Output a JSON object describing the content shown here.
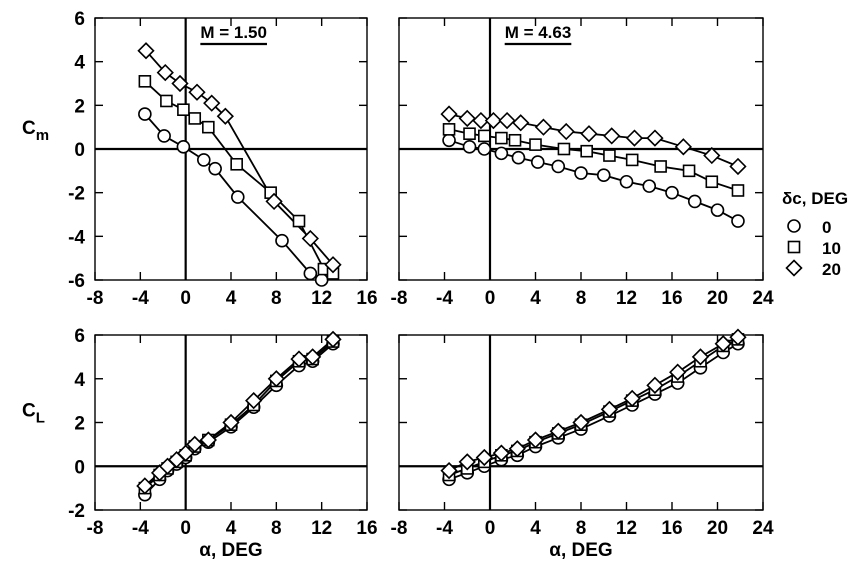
{
  "chart_data": [
    {
      "type": "line",
      "panel": "top-left",
      "title": "M = 1.50",
      "xlabel": "",
      "ylabel": "Cm",
      "xlim": [
        -8,
        16
      ],
      "ylim": [
        -6,
        6
      ],
      "x_ticks": [
        "-8",
        "-4",
        "0",
        "4",
        "8",
        "12",
        "16"
      ],
      "y_ticks": [
        "6",
        "4",
        "2",
        "0",
        "-2",
        "-4",
        "-6"
      ],
      "series": [
        {
          "name": "0",
          "marker": "circle",
          "points": [
            [
              -3.6,
              1.6
            ],
            [
              -1.9,
              0.6
            ],
            [
              -0.2,
              0.1
            ],
            [
              1.6,
              -0.5
            ],
            [
              2.6,
              -0.9
            ],
            [
              4.6,
              -2.2
            ],
            [
              8.5,
              -4.2
            ],
            [
              11.0,
              -5.7
            ],
            [
              12.0,
              -6.0
            ]
          ]
        },
        {
          "name": "10",
          "marker": "square",
          "points": [
            [
              -3.6,
              3.1
            ],
            [
              -1.7,
              2.2
            ],
            [
              -0.2,
              1.8
            ],
            [
              0.8,
              1.4
            ],
            [
              2.0,
              1.0
            ],
            [
              4.5,
              -0.7
            ],
            [
              7.5,
              -2.0
            ],
            [
              10.0,
              -3.3
            ],
            [
              12.2,
              -5.5
            ],
            [
              13.0,
              -5.7
            ]
          ]
        },
        {
          "name": "20",
          "marker": "diamond",
          "points": [
            [
              -3.5,
              4.5
            ],
            [
              -1.8,
              3.5
            ],
            [
              -0.5,
              3.0
            ],
            [
              1.0,
              2.6
            ],
            [
              2.3,
              2.1
            ],
            [
              3.5,
              1.5
            ],
            [
              7.8,
              -2.4
            ],
            [
              11.0,
              -4.1
            ],
            [
              13.0,
              -5.3
            ]
          ]
        }
      ]
    },
    {
      "type": "line",
      "panel": "top-right",
      "title": "M = 4.63",
      "xlabel": "",
      "ylabel": "",
      "xlim": [
        -8,
        24
      ],
      "ylim": [
        -6,
        6
      ],
      "x_ticks": [
        "-8",
        "-4",
        "0",
        "4",
        "8",
        "12",
        "16",
        "20",
        "24"
      ],
      "y_ticks": [],
      "series": [
        {
          "name": "0",
          "marker": "circle",
          "points": [
            [
              -3.6,
              0.4
            ],
            [
              -1.8,
              0.1
            ],
            [
              -0.5,
              0.0
            ],
            [
              1.0,
              -0.2
            ],
            [
              2.5,
              -0.4
            ],
            [
              4.2,
              -0.6
            ],
            [
              6.0,
              -0.8
            ],
            [
              8.0,
              -1.1
            ],
            [
              10.0,
              -1.2
            ],
            [
              12.0,
              -1.5
            ],
            [
              14.0,
              -1.7
            ],
            [
              16.0,
              -2.0
            ],
            [
              18.0,
              -2.4
            ],
            [
              20.0,
              -2.8
            ],
            [
              21.8,
              -3.3
            ]
          ]
        },
        {
          "name": "10",
          "marker": "square",
          "points": [
            [
              -3.6,
              0.9
            ],
            [
              -1.8,
              0.7
            ],
            [
              -0.5,
              0.6
            ],
            [
              1.0,
              0.5
            ],
            [
              2.2,
              0.4
            ],
            [
              4.0,
              0.2
            ],
            [
              6.5,
              0.0
            ],
            [
              8.5,
              -0.1
            ],
            [
              10.5,
              -0.3
            ],
            [
              12.5,
              -0.5
            ],
            [
              15.0,
              -0.8
            ],
            [
              17.5,
              -1.0
            ],
            [
              19.5,
              -1.5
            ],
            [
              21.8,
              -1.9
            ]
          ]
        },
        {
          "name": "20",
          "marker": "diamond",
          "points": [
            [
              -3.6,
              1.6
            ],
            [
              -2.0,
              1.4
            ],
            [
              -0.8,
              1.3
            ],
            [
              0.3,
              1.3
            ],
            [
              1.5,
              1.3
            ],
            [
              2.7,
              1.2
            ],
            [
              4.7,
              1.0
            ],
            [
              6.7,
              0.8
            ],
            [
              8.7,
              0.7
            ],
            [
              10.7,
              0.6
            ],
            [
              12.7,
              0.5
            ],
            [
              14.5,
              0.5
            ],
            [
              17.0,
              0.1
            ],
            [
              19.5,
              -0.3
            ],
            [
              21.8,
              -0.8
            ]
          ]
        }
      ]
    },
    {
      "type": "line",
      "panel": "bottom-left",
      "title": "",
      "xlabel": "α, DEG",
      "ylabel": "CL",
      "xlim": [
        -8,
        16
      ],
      "ylim": [
        -2,
        6
      ],
      "x_ticks": [
        "-8",
        "-4",
        "0",
        "4",
        "8",
        "12",
        "16"
      ],
      "y_ticks": [
        "6",
        "4",
        "2",
        "0",
        "-2"
      ],
      "series": [
        {
          "name": "0",
          "marker": "circle",
          "points": [
            [
              -3.6,
              -1.3
            ],
            [
              -2.3,
              -0.6
            ],
            [
              -1.6,
              -0.2
            ],
            [
              -0.8,
              0.1
            ],
            [
              0.0,
              0.4
            ],
            [
              0.8,
              0.8
            ],
            [
              2.0,
              1.1
            ],
            [
              4.0,
              1.8
            ],
            [
              6.0,
              2.7
            ],
            [
              8.0,
              3.7
            ],
            [
              10.0,
              4.6
            ],
            [
              11.2,
              4.8
            ],
            [
              13.0,
              5.6
            ]
          ]
        },
        {
          "name": "10",
          "marker": "square",
          "points": [
            [
              -3.6,
              -1.0
            ],
            [
              -2.3,
              -0.4
            ],
            [
              -1.6,
              -0.1
            ],
            [
              -0.8,
              0.2
            ],
            [
              0.0,
              0.5
            ],
            [
              0.8,
              0.9
            ],
            [
              2.0,
              1.2
            ],
            [
              4.0,
              1.9
            ],
            [
              6.0,
              2.8
            ],
            [
              8.0,
              3.9
            ],
            [
              10.0,
              4.8
            ],
            [
              11.2,
              4.9
            ],
            [
              13.0,
              5.7
            ]
          ]
        },
        {
          "name": "20",
          "marker": "diamond",
          "points": [
            [
              -3.6,
              -0.9
            ],
            [
              -2.3,
              -0.3
            ],
            [
              -1.6,
              0.0
            ],
            [
              -0.8,
              0.3
            ],
            [
              0.0,
              0.6
            ],
            [
              0.8,
              1.0
            ],
            [
              2.0,
              1.2
            ],
            [
              4.0,
              2.0
            ],
            [
              6.0,
              3.0
            ],
            [
              8.0,
              4.0
            ],
            [
              10.0,
              4.9
            ],
            [
              11.2,
              5.0
            ],
            [
              13.0,
              5.8
            ]
          ]
        }
      ]
    },
    {
      "type": "line",
      "panel": "bottom-right",
      "title": "",
      "xlabel": "α, DEG",
      "ylabel": "",
      "xlim": [
        -8,
        24
      ],
      "ylim": [
        -2,
        6
      ],
      "x_ticks": [
        "-8",
        "-4",
        "0",
        "4",
        "8",
        "12",
        "16",
        "20",
        "24"
      ],
      "y_ticks": [],
      "series": [
        {
          "name": "0",
          "marker": "circle",
          "points": [
            [
              -3.6,
              -0.6
            ],
            [
              -2.0,
              -0.3
            ],
            [
              -0.5,
              0.0
            ],
            [
              1.0,
              0.3
            ],
            [
              2.4,
              0.5
            ],
            [
              4.0,
              0.9
            ],
            [
              6.0,
              1.3
            ],
            [
              8.0,
              1.7
            ],
            [
              10.5,
              2.3
            ],
            [
              12.5,
              2.8
            ],
            [
              14.5,
              3.3
            ],
            [
              16.5,
              3.8
            ],
            [
              18.5,
              4.5
            ],
            [
              20.5,
              5.2
            ],
            [
              21.8,
              5.6
            ]
          ]
        },
        {
          "name": "10",
          "marker": "square",
          "points": [
            [
              -3.6,
              -0.4
            ],
            [
              -2.0,
              -0.1
            ],
            [
              -0.5,
              0.2
            ],
            [
              1.0,
              0.5
            ],
            [
              2.4,
              0.7
            ],
            [
              4.0,
              1.1
            ],
            [
              6.0,
              1.5
            ],
            [
              8.0,
              1.9
            ],
            [
              10.5,
              2.5
            ],
            [
              12.5,
              3.0
            ],
            [
              14.5,
              3.5
            ],
            [
              16.5,
              4.1
            ],
            [
              18.5,
              4.8
            ],
            [
              20.5,
              5.5
            ],
            [
              21.8,
              5.8
            ]
          ]
        },
        {
          "name": "20",
          "marker": "diamond",
          "points": [
            [
              -3.6,
              -0.2
            ],
            [
              -2.0,
              0.2
            ],
            [
              -0.5,
              0.4
            ],
            [
              1.0,
              0.6
            ],
            [
              2.4,
              0.8
            ],
            [
              4.0,
              1.2
            ],
            [
              6.0,
              1.6
            ],
            [
              8.0,
              2.0
            ],
            [
              10.5,
              2.6
            ],
            [
              12.5,
              3.1
            ],
            [
              14.5,
              3.7
            ],
            [
              16.5,
              4.3
            ],
            [
              18.5,
              5.0
            ],
            [
              20.5,
              5.6
            ],
            [
              21.8,
              5.9
            ]
          ]
        }
      ]
    }
  ],
  "legend": {
    "title": "δc, DEG",
    "entries": [
      {
        "marker": "circle",
        "label": "0"
      },
      {
        "marker": "square",
        "label": "10"
      },
      {
        "marker": "diamond",
        "label": "20"
      }
    ]
  }
}
